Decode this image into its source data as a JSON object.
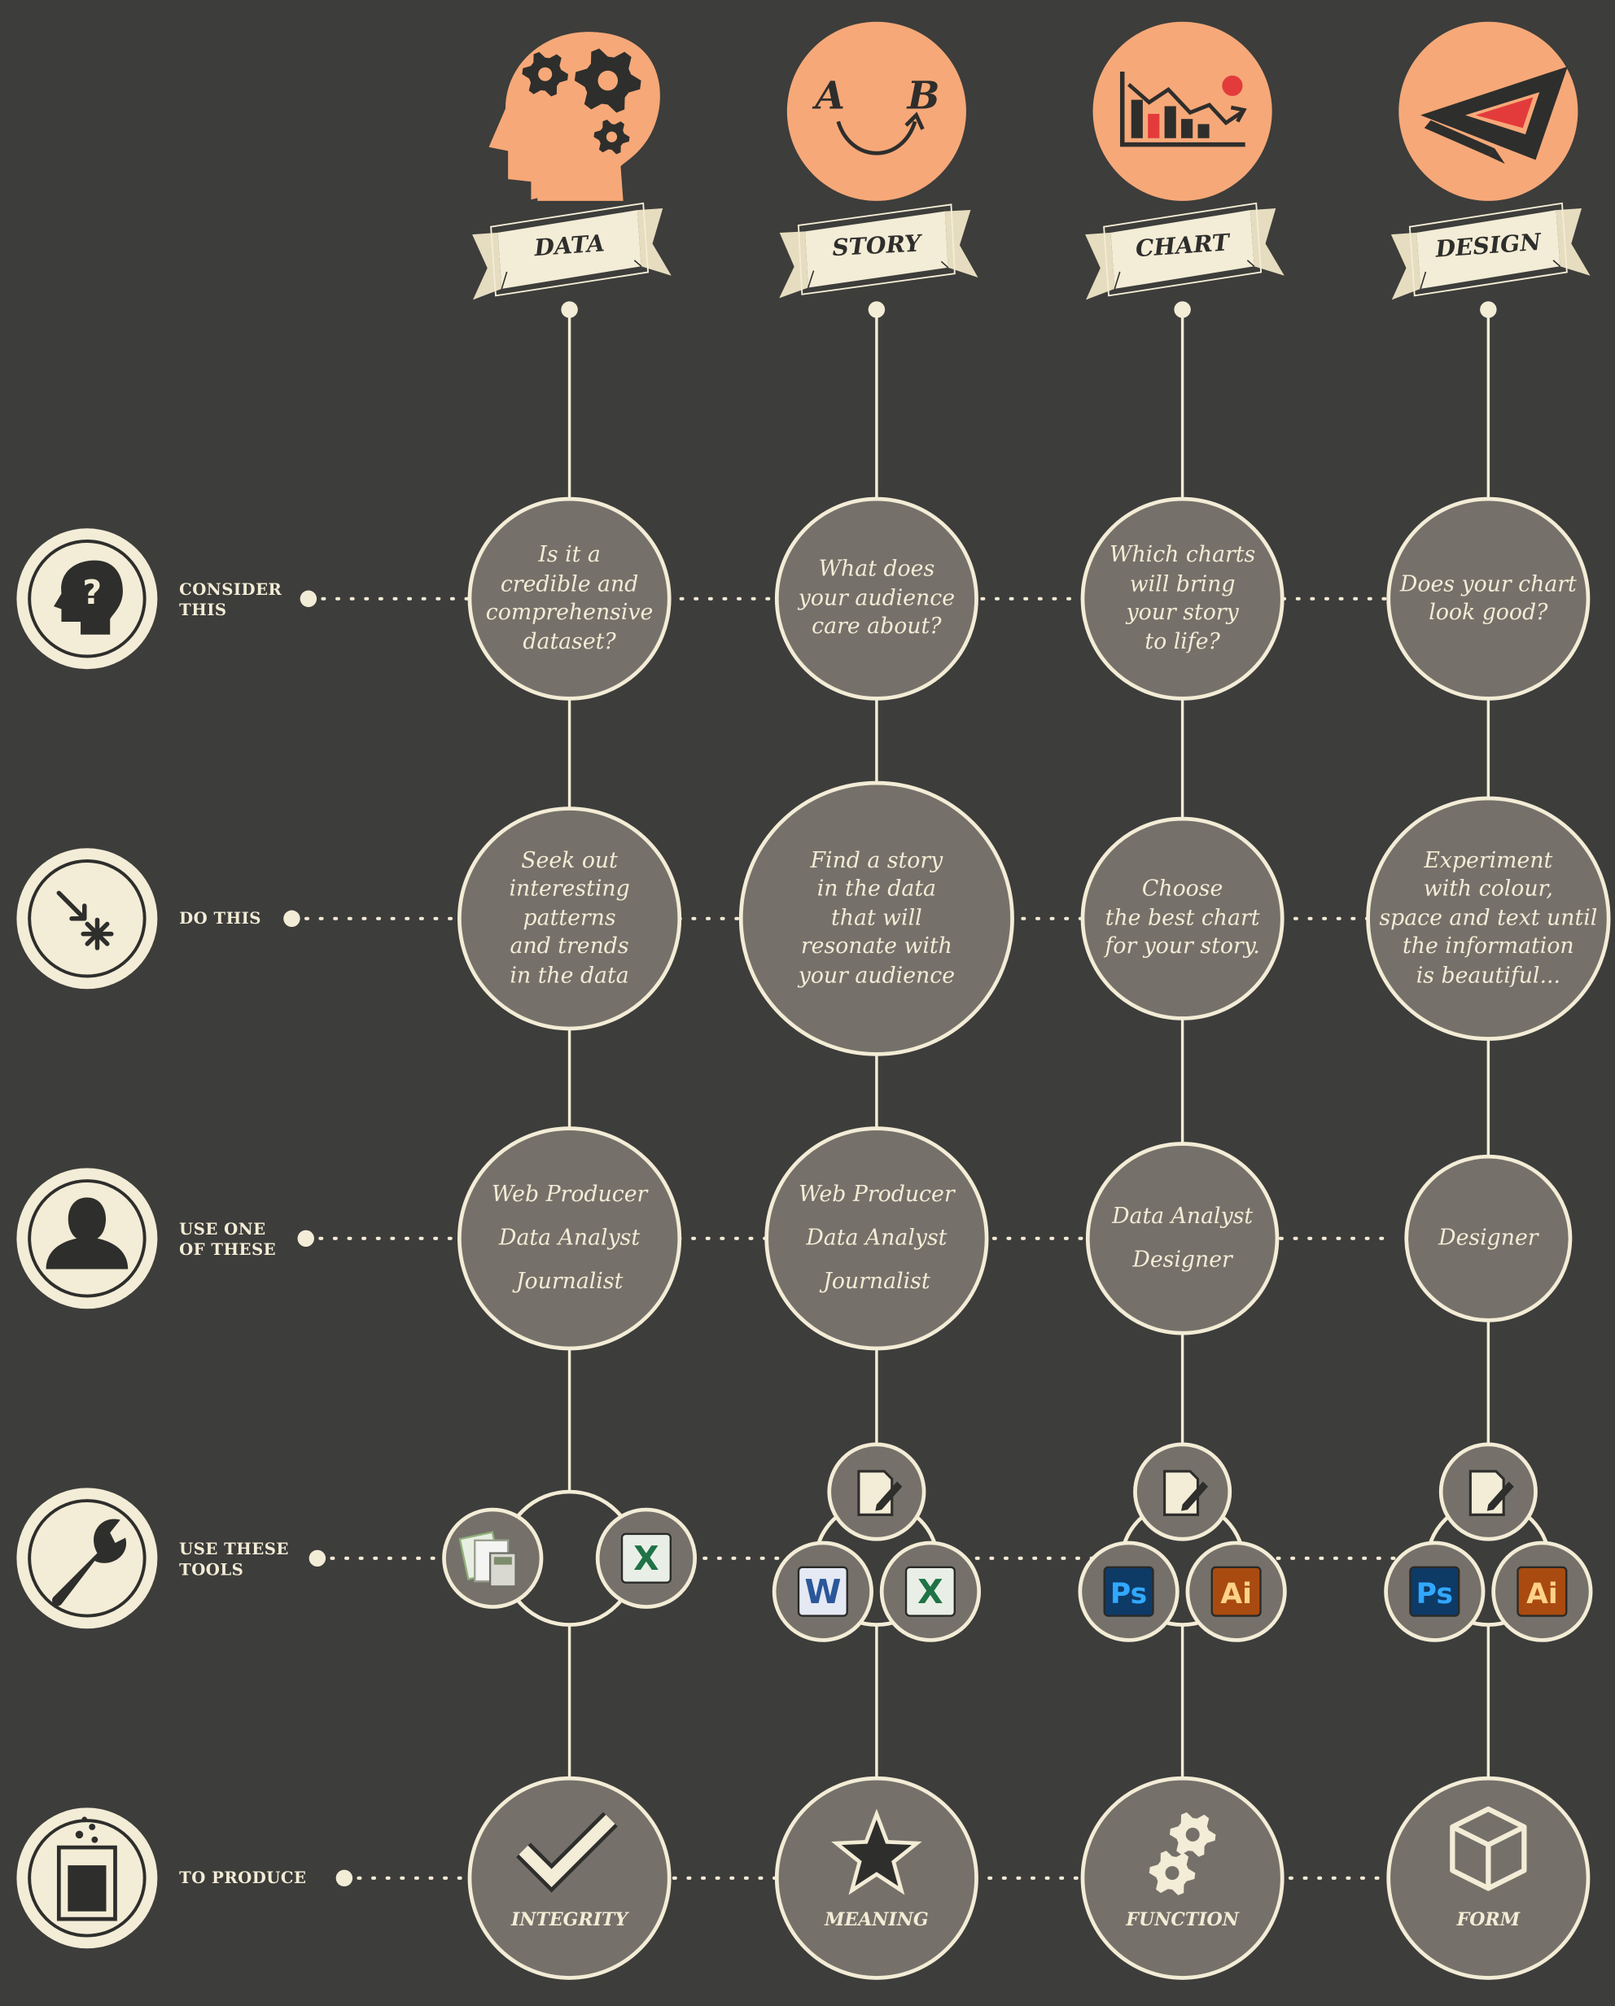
{
  "columns": [
    {
      "id": "data",
      "label": "DATA",
      "icon": "head-gears-icon",
      "produce": "INTEGRITY",
      "produce_icon": "checkmark-icon"
    },
    {
      "id": "story",
      "label": "STORY",
      "icon": "a-to-b-icon",
      "produce": "MEANING",
      "produce_icon": "star-icon"
    },
    {
      "id": "chart",
      "label": "CHART",
      "icon": "chart-icon",
      "produce": "FUNCTION",
      "produce_icon": "gears-icon"
    },
    {
      "id": "design",
      "label": "DESIGN",
      "icon": "set-square-pencil-icon",
      "produce": "FORM",
      "produce_icon": "cube-icon"
    }
  ],
  "story_icon_letters": {
    "a": "A",
    "b": "B"
  },
  "rows": [
    {
      "id": "consider",
      "label": "CONSIDER\nTHIS",
      "icon": "head-question-icon",
      "cells": [
        "Is it a\ncredible and\ncomprehensive\ndataset?",
        "What does\nyour audience\ncare about?",
        "Which charts\nwill bring\nyour story\nto life?",
        "Does your chart\nlook good?"
      ]
    },
    {
      "id": "do",
      "label": "DO THIS",
      "icon": "arrow-asterisk-icon",
      "cells": [
        "Seek out\ninteresting\npatterns\nand trends\nin the data",
        "Find a story\nin the data\nthat will\nresonate with\nyour audience",
        "Choose\nthe best chart\nfor your story.",
        "Experiment\nwith colour,\nspace and text until\nthe information\nis beautiful..."
      ]
    },
    {
      "id": "roles",
      "label": "USE ONE\nOF THESE",
      "icon": "person-icon",
      "cells": [
        "Web Producer\nData Analyst\nJournalist",
        "Web Producer\nData Analyst\nJournalist",
        "Data Analyst\nDesigner",
        "Designer"
      ]
    },
    {
      "id": "tools",
      "label": "USE THESE\nTOOLS",
      "icon": "wrench-icon"
    },
    {
      "id": "produce",
      "label": "TO PRODUCE",
      "icon": "beaker-icon"
    }
  ],
  "tools": [
    [
      {
        "name": "spreadsheet-app-icon"
      },
      {
        "name": "excel-icon",
        "glyph": "X"
      }
    ],
    [
      {
        "name": "text-editor-icon"
      },
      {
        "name": "word-icon",
        "glyph": "W"
      },
      {
        "name": "excel-icon",
        "glyph": "X"
      }
    ],
    [
      {
        "name": "text-editor-icon"
      },
      {
        "name": "photoshop-icon",
        "glyph": "Ps"
      },
      {
        "name": "illustrator-icon",
        "glyph": "Ai"
      }
    ],
    [
      {
        "name": "text-editor-icon"
      },
      {
        "name": "photoshop-icon",
        "glyph": "Ps"
      },
      {
        "name": "illustrator-icon",
        "glyph": "Ai"
      }
    ]
  ],
  "colors": {
    "background": "#3d3d3b",
    "node_fill": "#75716a",
    "stroke": "#f3ecd6",
    "accent": "#f6a878",
    "icon_dark": "#2e2e2c",
    "highlight_red": "#e33b3b"
  }
}
